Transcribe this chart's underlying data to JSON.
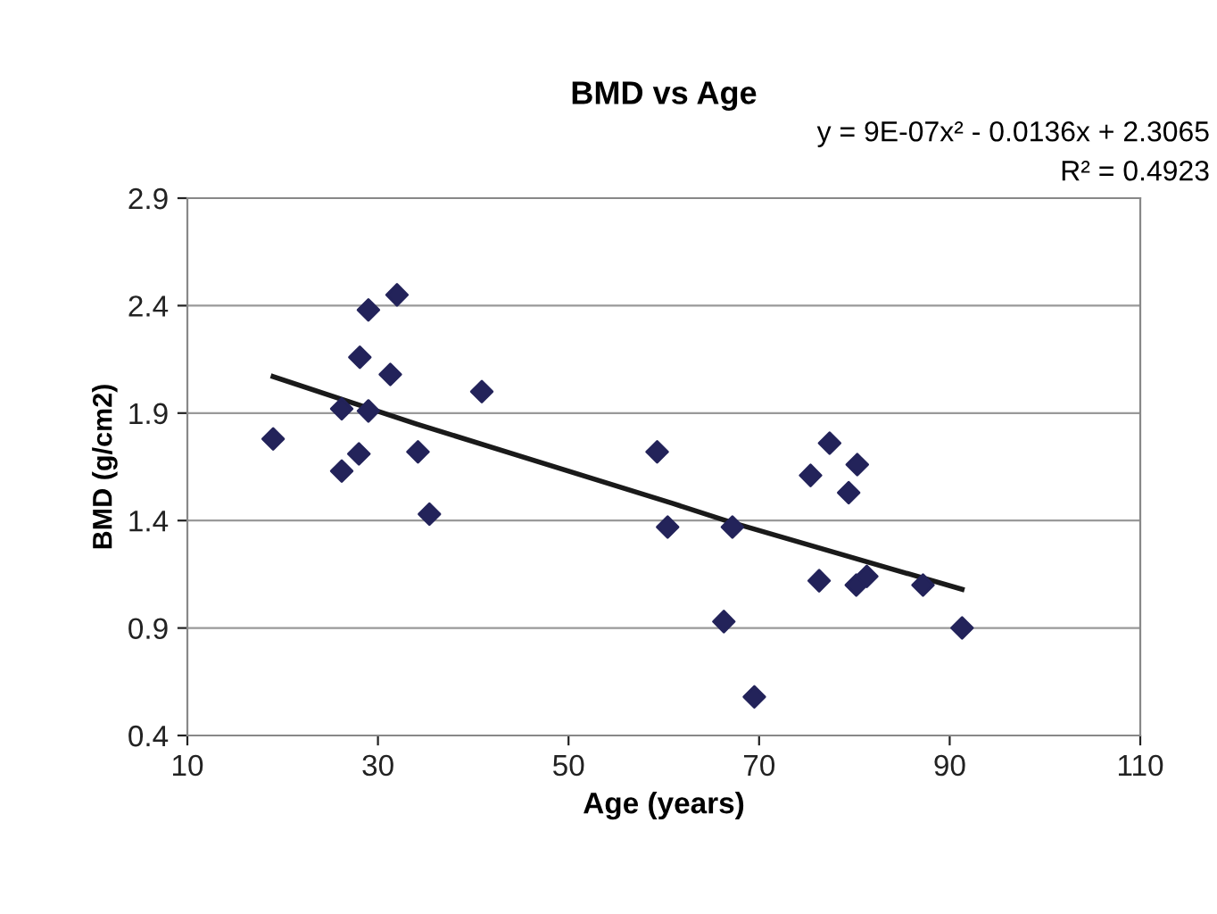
{
  "chart_data": {
    "type": "scatter",
    "title": "BMD vs Age",
    "xlabel": "Age (years)",
    "ylabel": "BMD (g/cm2)",
    "annotations": [
      "y = 9E-07x² - 0.0136x + 2.3065",
      "R² = 0.4923"
    ],
    "xlim": [
      10,
      110
    ],
    "xticks": [
      10,
      30,
      50,
      70,
      90,
      110
    ],
    "ylim": [
      0.4,
      2.9
    ],
    "yticks": [
      0.4,
      0.9,
      1.4,
      1.9,
      2.4,
      2.9
    ],
    "grid": "y",
    "legend": false,
    "marker": "diamond",
    "series": [
      {
        "color": "#23235a",
        "x": [
          19.0,
          26.2,
          29.0,
          32.0,
          28.1,
          31.3,
          29.0,
          40.9,
          28.0,
          26.2,
          34.2,
          35.4,
          59.3,
          60.4,
          67.2,
          66.3,
          69.5,
          75.4,
          77.4,
          80.3,
          79.4,
          76.3,
          80.2,
          81.3,
          87.2,
          91.3
        ],
        "values": [
          1.78,
          1.92,
          2.38,
          2.45,
          2.16,
          2.08,
          1.91,
          2.0,
          1.71,
          1.63,
          1.72,
          1.43,
          1.72,
          1.37,
          1.37,
          0.93,
          0.58,
          1.61,
          1.76,
          1.66,
          1.53,
          1.12,
          1.1,
          1.14,
          1.1,
          0.9
        ]
      },
      {
        "type": "line",
        "color": "#1a1a1a",
        "marker": "none",
        "line_style": "solid",
        "x": [
          19.0,
          34.0,
          60.9,
          67.2,
          91.3
        ],
        "values": [
          2.07,
          1.85,
          1.48,
          1.39,
          1.08
        ]
      }
    ]
  }
}
